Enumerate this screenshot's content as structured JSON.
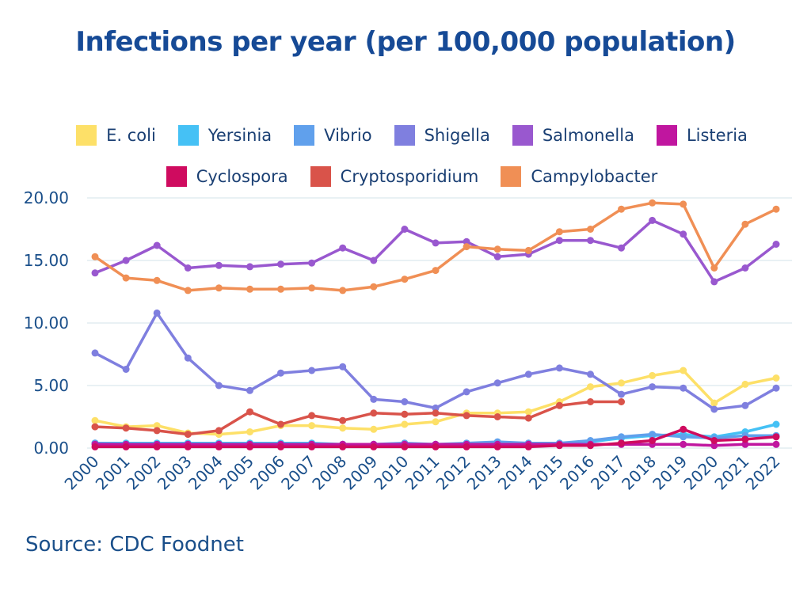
{
  "chart_data": {
    "type": "line",
    "title": "Infections per year (per 100,000 population)",
    "xlabel": "",
    "ylabel": "",
    "ylim": [
      0,
      20
    ],
    "yticks": [
      "0.00",
      "5.00",
      "10.00",
      "15.00",
      "20.00"
    ],
    "grid": true,
    "legend_position": "top",
    "x": [
      "2000",
      "2001",
      "2002",
      "2003",
      "2004",
      "2005",
      "2006",
      "2007",
      "2008",
      "2009",
      "2010",
      "2011",
      "2012",
      "2013",
      "2014",
      "2015",
      "2016",
      "2017",
      "2018",
      "2019",
      "2020",
      "2021",
      "2022"
    ],
    "series": [
      {
        "name": "E. coli",
        "color": "#fde068",
        "values": [
          2.2,
          1.7,
          1.8,
          1.2,
          1.1,
          1.3,
          1.8,
          1.8,
          1.6,
          1.5,
          1.9,
          2.1,
          2.8,
          2.8,
          2.9,
          3.7,
          4.9,
          5.2,
          5.8,
          6.2,
          3.6,
          5.1,
          5.6
        ]
      },
      {
        "name": "Yersinia",
        "color": "#45c1f5",
        "values": [
          0.4,
          0.4,
          0.4,
          0.4,
          0.4,
          0.4,
          0.4,
          0.4,
          0.3,
          0.3,
          0.3,
          0.3,
          0.3,
          0.3,
          0.3,
          0.3,
          0.5,
          0.8,
          1.0,
          1.1,
          0.9,
          1.3,
          1.9
        ]
      },
      {
        "name": "Vibrio",
        "color": "#60a0ec",
        "values": [
          0.4,
          0.3,
          0.3,
          0.3,
          0.3,
          0.3,
          0.3,
          0.3,
          0.3,
          0.3,
          0.4,
          0.3,
          0.4,
          0.5,
          0.4,
          0.4,
          0.6,
          0.9,
          1.1,
          0.9,
          0.8,
          1.0,
          1.0
        ]
      },
      {
        "name": "Shigella",
        "color": "#7f7fdf",
        "values": [
          7.6,
          6.3,
          10.8,
          7.2,
          5.0,
          4.6,
          6.0,
          6.2,
          6.5,
          3.9,
          3.7,
          3.2,
          4.5,
          5.2,
          5.9,
          6.4,
          5.9,
          4.3,
          4.9,
          4.8,
          3.1,
          3.4,
          4.8
        ]
      },
      {
        "name": "Salmonella",
        "color": "#9958cf",
        "values": [
          14.0,
          15.0,
          16.2,
          14.4,
          14.6,
          14.5,
          14.7,
          14.8,
          16.0,
          15.0,
          17.5,
          16.4,
          16.5,
          15.3,
          15.5,
          16.6,
          16.6,
          16.0,
          18.2,
          17.1,
          13.3,
          14.4,
          16.3
        ]
      },
      {
        "name": "Listeria",
        "color": "#c0169f",
        "values": [
          0.3,
          0.3,
          0.3,
          0.3,
          0.3,
          0.3,
          0.3,
          0.3,
          0.3,
          0.3,
          0.3,
          0.3,
          0.3,
          0.3,
          0.3,
          0.3,
          0.3,
          0.3,
          0.3,
          0.3,
          0.2,
          0.3,
          0.3
        ]
      },
      {
        "name": "Cyclospora",
        "color": "#cf0b5f",
        "values": [
          0.1,
          0.1,
          0.1,
          0.1,
          0.1,
          0.1,
          0.1,
          0.1,
          0.1,
          0.1,
          0.1,
          0.1,
          0.1,
          0.1,
          0.1,
          0.2,
          0.2,
          0.4,
          0.6,
          1.5,
          0.6,
          0.7,
          0.9
        ]
      },
      {
        "name": "Cryptosporidium",
        "color": "#d9534a",
        "values": [
          1.7,
          1.6,
          1.4,
          1.1,
          1.4,
          2.9,
          1.9,
          2.6,
          2.2,
          2.8,
          2.7,
          2.8,
          2.6,
          2.5,
          2.4,
          3.4,
          3.7,
          3.7,
          null,
          null,
          null,
          null,
          null
        ]
      },
      {
        "name": "Campylobacter",
        "color": "#f08f55",
        "values": [
          15.3,
          13.6,
          13.4,
          12.6,
          12.8,
          12.7,
          12.7,
          12.8,
          12.6,
          12.9,
          13.5,
          14.2,
          16.1,
          15.9,
          15.8,
          17.3,
          17.5,
          19.1,
          19.6,
          19.5,
          14.4,
          17.9,
          19.1
        ]
      }
    ]
  },
  "source": "Source: CDC Foodnet"
}
